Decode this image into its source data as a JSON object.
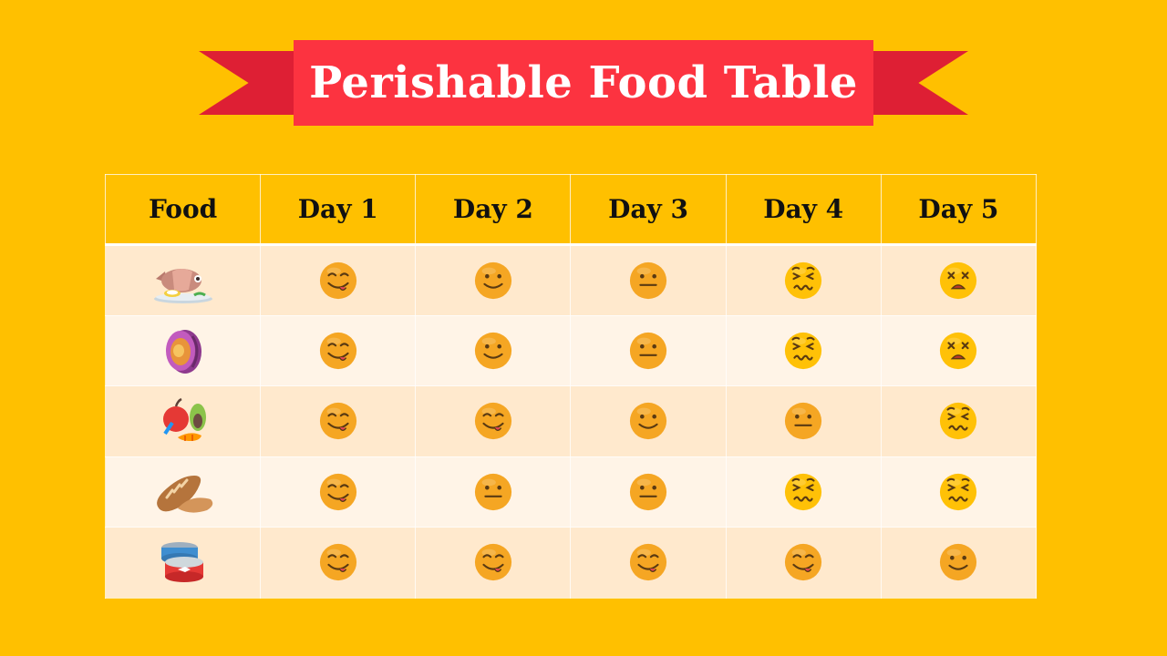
{
  "banner": {
    "title": "Perishable Food Table"
  },
  "table": {
    "headers": [
      "Food",
      "Day 1",
      "Day 2",
      "Day 3",
      "Day 4",
      "Day 5"
    ],
    "rows": [
      {
        "food_icon": "fish-meat-dish-icon",
        "days": [
          "yummy-face-icon",
          "smile-face-icon",
          "neutral-face-icon",
          "sick-face-icon",
          "dead-face-icon"
        ]
      },
      {
        "food_icon": "ham-meat-icon",
        "days": [
          "yummy-face-icon",
          "smile-face-icon",
          "neutral-face-icon",
          "sick-face-icon",
          "dead-face-icon"
        ]
      },
      {
        "food_icon": "fruits-vegetables-icon",
        "days": [
          "yummy-face-icon",
          "yummy-face-icon",
          "smile-face-icon",
          "neutral-face-icon",
          "sick-face-icon"
        ]
      },
      {
        "food_icon": "bread-icon",
        "days": [
          "yummy-face-icon",
          "neutral-face-icon",
          "neutral-face-icon",
          "sick-face-icon",
          "sick-face-icon"
        ]
      },
      {
        "food_icon": "canned-food-icon",
        "days": [
          "yummy-face-icon",
          "yummy-face-icon",
          "yummy-face-icon",
          "yummy-face-icon",
          "smile-face-icon"
        ]
      }
    ]
  },
  "colors": {
    "background": "#FFC000",
    "ribbon_main": "#FC3340",
    "ribbon_tail": "#DE1F34",
    "row_odd": "#FFE9CD",
    "row_even": "#FFF4E7",
    "face_orange": "#F5A623",
    "face_yellow": "#FFC107"
  }
}
